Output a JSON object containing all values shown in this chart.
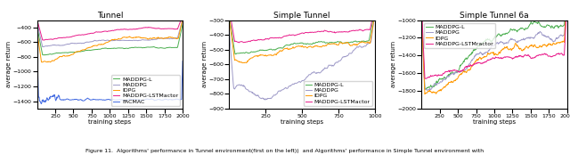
{
  "fig1_title": "Tunnel",
  "fig2_title": "Simple Tunnel",
  "fig3_title": "Simple Tunnel 6a",
  "ylabel": "average return",
  "xlabel": "training steps",
  "caption": "Figure 11.  Algorithms' performance in Tunnel environment(first on the left))  and Algorithms' performance in Simple Tunnel environment with",
  "fig1_legends": [
    "MADDPG-L",
    "MADDPG",
    "IDPG",
    "MADDPG-LSTMactor",
    "FACMAC"
  ],
  "fig1_colors": [
    "#4caf50",
    "#9e9ac8",
    "#ff9800",
    "#e91e8c",
    "#4169e1"
  ],
  "fig1_xlim": [
    0,
    2000
  ],
  "fig1_ylim": [
    -1500,
    -300
  ],
  "fig1_xticks": [
    250,
    500,
    750,
    1000,
    1250,
    1500,
    1750,
    2000
  ],
  "fig2_legends": [
    "MADDPG-L",
    "MADDPG",
    "IDPG",
    "MADDPG-LSTMactor"
  ],
  "fig2_colors": [
    "#4caf50",
    "#9e9ac8",
    "#ff9800",
    "#e91e8c"
  ],
  "fig2_xlim": [
    0,
    1000
  ],
  "fig2_ylim": [
    -900,
    -300
  ],
  "fig2_xticks": [
    250,
    500,
    750,
    1000
  ],
  "fig3_legends": [
    "MADDPG-L",
    "MADDPG",
    "IDPG",
    "MADDPG-LSTMractor"
  ],
  "fig3_colors": [
    "#4caf50",
    "#9e9ac8",
    "#ff9800",
    "#e91e8c"
  ],
  "fig3_xlim": [
    0,
    2000
  ],
  "fig3_ylim": [
    -2000,
    -1000
  ],
  "fig3_xticks": [
    250,
    500,
    750,
    1000,
    1250,
    1500,
    1750,
    2000
  ],
  "linewidth": 0.7,
  "legend_fontsize": 4.5,
  "tick_fontsize": 4.5,
  "title_fontsize": 6.5,
  "label_fontsize": 5
}
